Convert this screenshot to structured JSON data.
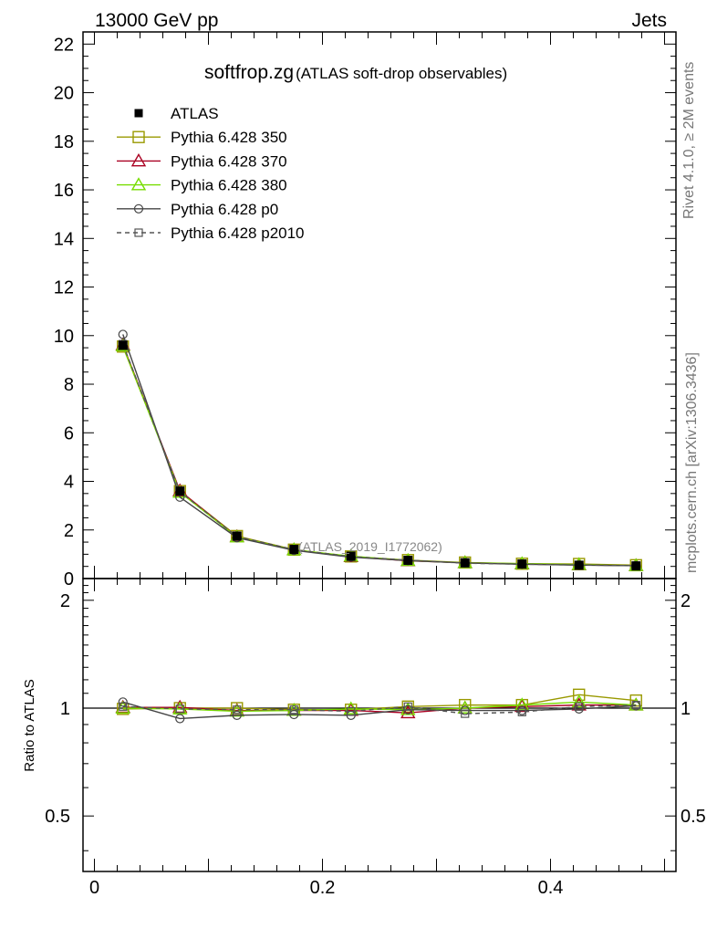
{
  "header": {
    "left": "13000 GeV pp",
    "right": "Jets",
    "side_top": "Rivet 4.1.0, ≥ 2M events",
    "side_bottom": "mcplots.cern.ch [arXiv:1306.3436]"
  },
  "chart_data": {
    "type": "line",
    "title": "softfrop.zg",
    "subtitle": "(ATLAS soft-drop observables)",
    "watermark": "(ATLAS_2019_I1772062)",
    "xlabel": "",
    "ylabel": "",
    "ratio_ylabel": "Ratio to ATLAS",
    "xlim": [
      -0.01,
      0.51
    ],
    "ylim": [
      0,
      22.5
    ],
    "ratio_ylim": [
      0.35,
      2.3
    ],
    "x_ticks": [
      0,
      0.2,
      0.4
    ],
    "x_tick_labels": [
      "0",
      "0.2",
      "0.4"
    ],
    "y_ticks": [
      0,
      2,
      4,
      6,
      8,
      10,
      12,
      14,
      16,
      18,
      20,
      22
    ],
    "y_tick_labels": [
      "0",
      "2",
      "4",
      "6",
      "8",
      "10",
      "12",
      "14",
      "16",
      "18",
      "20",
      "22"
    ],
    "ratio_ticks": [
      0.5,
      1,
      2
    ],
    "ratio_tick_labels": [
      "0.5",
      "1",
      "2"
    ],
    "x": [
      0.025,
      0.075,
      0.125,
      0.175,
      0.225,
      0.275,
      0.325,
      0.375,
      0.425,
      0.475
    ],
    "series": [
      {
        "name": "ATLAS",
        "color": "#000000",
        "marker": "filled-square",
        "line": "none",
        "values": [
          9.6,
          3.6,
          1.75,
          1.2,
          0.92,
          0.75,
          0.65,
          0.6,
          0.55,
          0.52
        ],
        "ratio": [
          1,
          1,
          1,
          1,
          1,
          1,
          1,
          1,
          1,
          1
        ]
      },
      {
        "name": "Pythia 6.428 350",
        "color": "#999900",
        "marker": "open-square",
        "line": "solid",
        "values": [
          9.55,
          3.6,
          1.75,
          1.19,
          0.91,
          0.76,
          0.66,
          0.61,
          0.6,
          0.55
        ],
        "ratio": [
          0.995,
          1.0,
          1.0,
          0.99,
          0.99,
          1.01,
          1.02,
          1.02,
          1.09,
          1.05
        ]
      },
      {
        "name": "Pythia 6.428 370",
        "color": "#aa0022",
        "marker": "open-triangle",
        "line": "solid",
        "values": [
          9.62,
          3.61,
          1.72,
          1.18,
          0.9,
          0.73,
          0.65,
          0.6,
          0.56,
          0.53
        ],
        "ratio": [
          1.005,
          1.005,
          0.985,
          0.985,
          0.985,
          0.97,
          1.0,
          1.01,
          1.02,
          1.02
        ]
      },
      {
        "name": "Pythia 6.428 380",
        "color": "#77dd00",
        "marker": "open-triangle",
        "line": "solid",
        "values": [
          9.58,
          3.55,
          1.71,
          1.18,
          0.92,
          0.74,
          0.65,
          0.61,
          0.57,
          0.53
        ],
        "ratio": [
          1.0,
          0.995,
          0.98,
          0.985,
          0.995,
          0.99,
          1.0,
          1.02,
          1.04,
          1.02
        ]
      },
      {
        "name": "Pythia 6.428 p0",
        "color": "#444444",
        "marker": "open-circle",
        "line": "solid",
        "values": [
          10.05,
          3.35,
          1.68,
          1.16,
          0.88,
          0.74,
          0.64,
          0.59,
          0.55,
          0.53
        ],
        "ratio": [
          1.04,
          0.935,
          0.955,
          0.96,
          0.955,
          0.99,
          0.985,
          0.985,
          0.995,
          1.015
        ]
      },
      {
        "name": "Pythia 6.428 p2010",
        "color": "#555555",
        "marker": "open-square-small",
        "line": "dashed",
        "values": [
          9.65,
          3.58,
          1.73,
          1.19,
          0.9,
          0.76,
          0.63,
          0.59,
          0.56,
          0.53
        ],
        "ratio": [
          1.01,
          0.995,
          0.99,
          0.99,
          0.98,
          1.01,
          0.965,
          0.975,
          1.01,
          1.02
        ]
      }
    ]
  }
}
